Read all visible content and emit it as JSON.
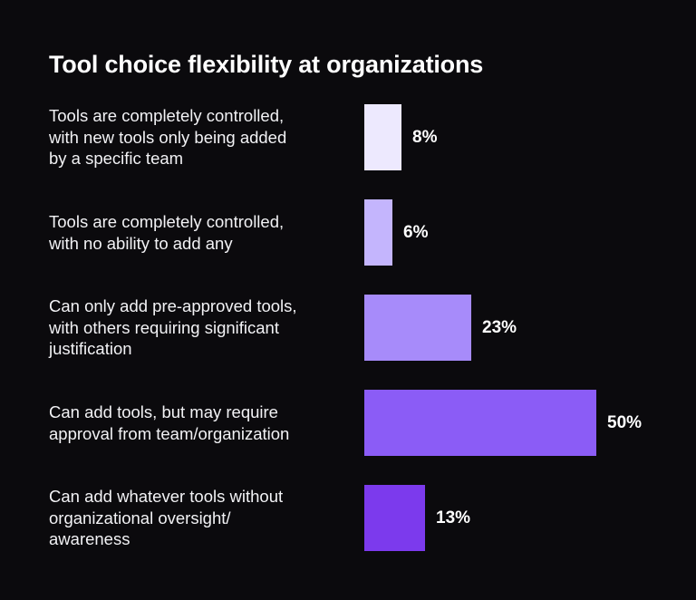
{
  "chart_data": {
    "type": "bar",
    "orientation": "horizontal",
    "title": "Tool choice flexibility at organizations",
    "categories": [
      [
        "Tools are completely controlled,",
        "with new tools only being added",
        "by a specific team"
      ],
      [
        "Tools are completely controlled,",
        "with no ability to add any"
      ],
      [
        "Can only add pre-approved tools,",
        "with others requiring significant",
        "justification"
      ],
      [
        "Can add tools, but may require",
        "approval from team/organization"
      ],
      [
        "Can add whatever tools without",
        "organizational oversight/",
        "awareness"
      ]
    ],
    "values": [
      8,
      6,
      23,
      50,
      13
    ],
    "value_labels": [
      "8%",
      "6%",
      "23%",
      "50%",
      "13%"
    ],
    "value_unit": "%",
    "colors": [
      "#ede9fe",
      "#c4b5fd",
      "#a78bfa",
      "#8b5cf6",
      "#7c3aed"
    ],
    "background": "#0b0a0d",
    "grid": false,
    "legend": "none"
  }
}
